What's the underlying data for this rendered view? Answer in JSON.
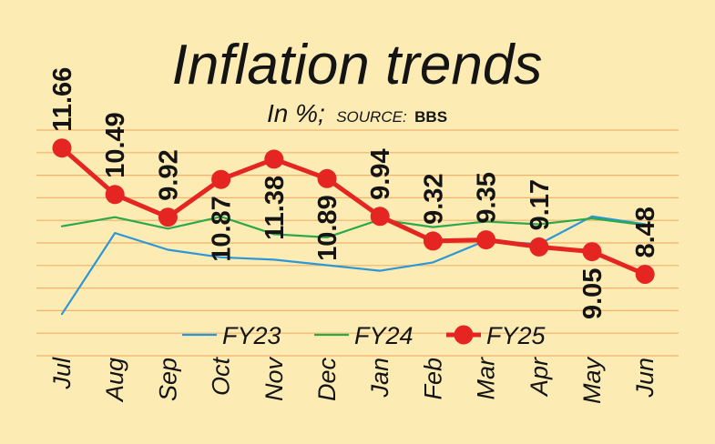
{
  "chart_data": {
    "type": "line",
    "title": "Inflation trends",
    "subtitle_unit": "In %;",
    "subtitle_source_label": "SOURCE:",
    "subtitle_source_name": "BBS",
    "categories": [
      "Jul",
      "Aug",
      "Sep",
      "Oct",
      "Nov",
      "Dec",
      "Jan",
      "Feb",
      "Mar",
      "Apr",
      "May",
      "Jun"
    ],
    "ylim": [
      6.5,
      12.5
    ],
    "grid": true,
    "legend_position": "bottom",
    "series": [
      {
        "name": "FY23",
        "color": "#2b97d6",
        "values": [
          7.48,
          9.52,
          9.1,
          8.91,
          8.85,
          8.71,
          8.57,
          8.78,
          9.33,
          9.24,
          9.94,
          9.74
        ],
        "labeled": false
      },
      {
        "name": "FY24",
        "color": "#2aa84a",
        "values": [
          9.69,
          9.92,
          9.63,
          9.93,
          9.49,
          9.41,
          9.86,
          9.67,
          9.81,
          9.74,
          9.89,
          9.72
        ],
        "labeled": false
      },
      {
        "name": "FY25",
        "color": "#e52521",
        "values": [
          11.66,
          10.49,
          9.92,
          10.87,
          11.38,
          10.89,
          9.94,
          9.32,
          9.35,
          9.17,
          9.05,
          8.48
        ],
        "labeled": true,
        "data_labels": [
          "11.66",
          "10.49",
          "9.92",
          "10.87",
          "11.38",
          "10.89",
          "9.94",
          "9.32",
          "9.35",
          "9.17",
          "9.05",
          "8.48"
        ]
      }
    ]
  }
}
